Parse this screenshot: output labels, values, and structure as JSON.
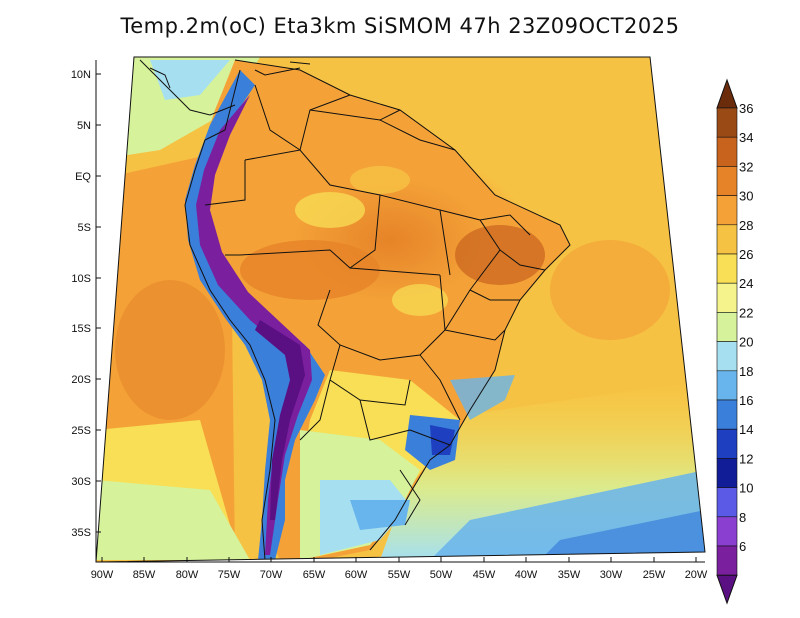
{
  "title": "Temp.2m(oC) Eta3km SiSMOM 47h 23Z09OCT2025",
  "axes": {
    "lat_labels": [
      "10N",
      "5N",
      "EQ",
      "5S",
      "10S",
      "15S",
      "20S",
      "25S",
      "30S",
      "35S"
    ],
    "lon_labels": [
      "90W",
      "85W",
      "80W",
      "75W",
      "70W",
      "65W",
      "60W",
      "55W",
      "50W",
      "45W",
      "40W",
      "35W",
      "30W",
      "25W",
      "20W"
    ]
  },
  "colorbar": {
    "labels": [
      "36",
      "34",
      "32",
      "30",
      "28",
      "26",
      "24",
      "22",
      "20",
      "18",
      "16",
      "14",
      "12",
      "10",
      "8",
      "6"
    ],
    "colors": [
      "#6b2c0b",
      "#9a4a15",
      "#c8631e",
      "#e68328",
      "#f4a238",
      "#f6c243",
      "#f8df55",
      "#f4f38c",
      "#d6f29a",
      "#a6e0f0",
      "#68b4ec",
      "#3a7fda",
      "#1d3fc0",
      "#101d96",
      "#5a5ae6",
      "#8b3fd0",
      "#7a1f9e",
      "#5a0f82"
    ]
  }
}
